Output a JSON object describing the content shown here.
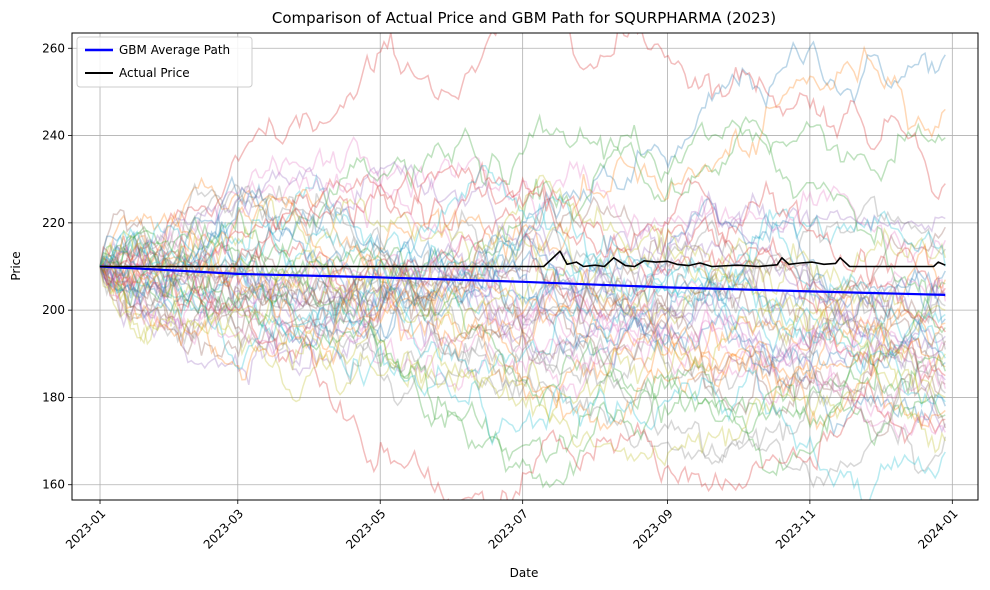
{
  "chart_data": {
    "type": "line",
    "title": "Comparison of Actual Price and GBM Path for SQURPHARMA (2023)",
    "xlabel": "Date",
    "ylabel": "Price",
    "x_range": [
      "2022-12-20",
      "2024-01-12"
    ],
    "ylim": [
      156.5,
      263.5
    ],
    "x_ticks": [
      "2023-01",
      "2023-03",
      "2023-05",
      "2023-07",
      "2023-09",
      "2023-11",
      "2024-01"
    ],
    "y_ticks": [
      160,
      180,
      200,
      220,
      240,
      260
    ],
    "grid": true,
    "legend": {
      "placement": "top-left",
      "entries": [
        "GBM Average Path",
        "Actual Price"
      ]
    },
    "simulated_paths": {
      "count": 50,
      "start_date": "2023-01-01",
      "start_value": 210,
      "opacity": 0.3,
      "final_values": [
        258.5,
        246,
        239.5,
        229,
        221,
        219,
        216,
        214,
        212,
        210,
        209,
        207,
        206,
        205,
        204,
        203,
        202,
        201,
        200,
        199,
        198,
        197,
        196,
        195,
        194,
        193,
        192,
        191,
        190,
        189,
        188,
        187,
        186,
        185,
        184,
        183,
        182,
        181,
        180,
        179,
        178,
        177,
        176,
        175,
        174,
        173,
        172,
        171,
        170,
        167.5
      ],
      "colors": [
        "#1f77b4",
        "#ff7f0e",
        "#2ca02c",
        "#d62728",
        "#9467bd",
        "#8c564b",
        "#e377c2",
        "#7f7f7f",
        "#bcbd22",
        "#17becf"
      ]
    },
    "series": [
      {
        "name": "GBM Average Path",
        "color": "#0000ff",
        "points": [
          [
            "2023-01-01",
            210.0
          ],
          [
            "2023-03-01",
            208.3
          ],
          [
            "2023-05-01",
            207.5
          ],
          [
            "2023-07-01",
            206.5
          ],
          [
            "2023-09-01",
            205.2
          ],
          [
            "2023-11-01",
            204.3
          ],
          [
            "2023-12-29",
            203.5
          ]
        ]
      },
      {
        "name": "Actual Price",
        "color": "#000000",
        "points": [
          [
            "2023-01-01",
            210.0
          ],
          [
            "2023-07-10",
            210.0
          ],
          [
            "2023-07-13",
            211.5
          ],
          [
            "2023-07-17",
            213.5
          ],
          [
            "2023-07-20",
            210.5
          ],
          [
            "2023-07-24",
            211.0
          ],
          [
            "2023-07-27",
            210.0
          ],
          [
            "2023-08-01",
            210.3
          ],
          [
            "2023-08-05",
            210.0
          ],
          [
            "2023-08-09",
            212.0
          ],
          [
            "2023-08-14",
            210.2
          ],
          [
            "2023-08-18",
            210.0
          ],
          [
            "2023-08-22",
            211.3
          ],
          [
            "2023-08-27",
            211.0
          ],
          [
            "2023-09-01",
            211.2
          ],
          [
            "2023-09-05",
            210.5
          ],
          [
            "2023-09-10",
            210.2
          ],
          [
            "2023-09-15",
            210.8
          ],
          [
            "2023-09-20",
            210.0
          ],
          [
            "2023-10-01",
            210.3
          ],
          [
            "2023-10-10",
            210.0
          ],
          [
            "2023-10-18",
            210.4
          ],
          [
            "2023-10-20",
            212.0
          ],
          [
            "2023-10-23",
            210.5
          ],
          [
            "2023-10-28",
            210.8
          ],
          [
            "2023-11-02",
            211.0
          ],
          [
            "2023-11-07",
            210.5
          ],
          [
            "2023-11-12",
            210.7
          ],
          [
            "2023-11-14",
            212.0
          ],
          [
            "2023-11-18",
            210.0
          ],
          [
            "2023-12-01",
            210.0
          ],
          [
            "2023-12-20",
            210.0
          ],
          [
            "2023-12-24",
            210.0
          ],
          [
            "2023-12-26",
            211.0
          ],
          [
            "2023-12-29",
            210.3
          ]
        ]
      }
    ]
  }
}
